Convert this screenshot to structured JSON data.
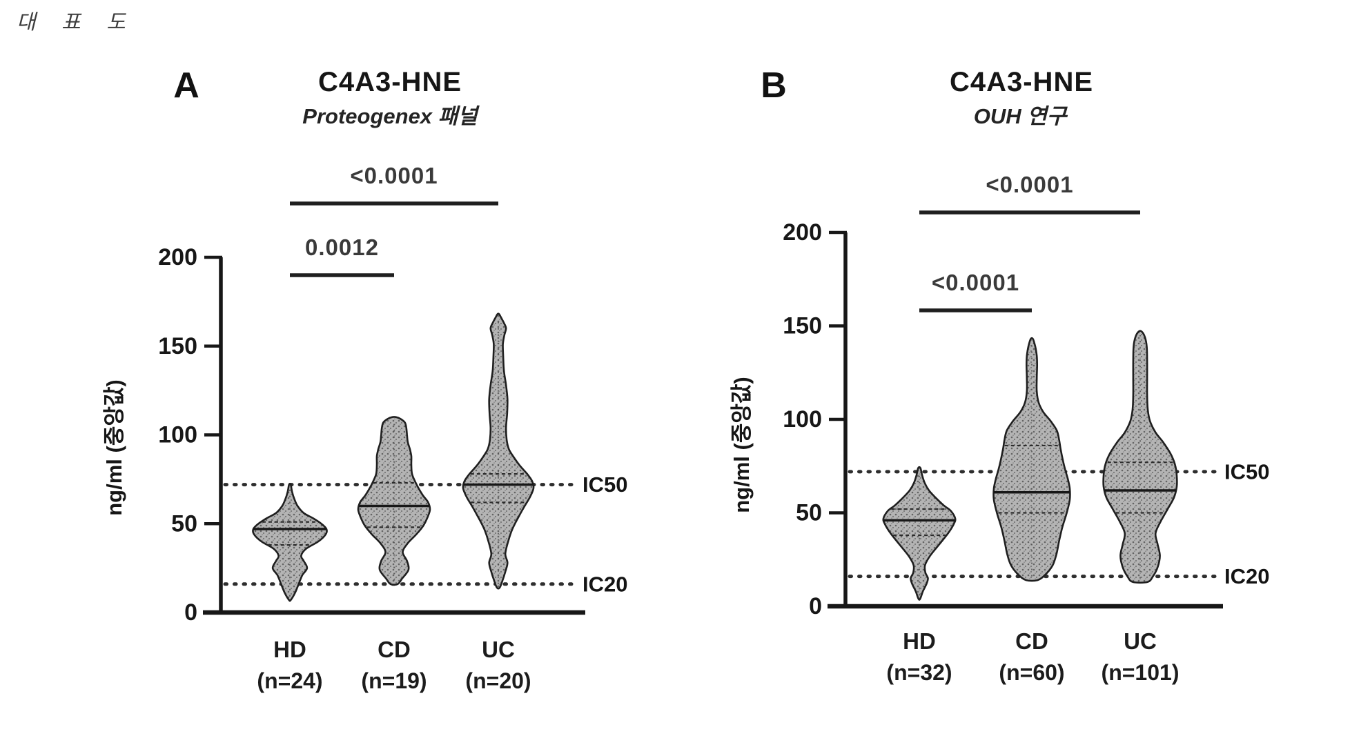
{
  "page": {
    "header": "대 표 도",
    "background": "#ffffff"
  },
  "colors": {
    "ink": "#161616",
    "axis": "#171717",
    "violin_fill": "#b4b4b4",
    "violin_stipple": "#646464",
    "violin_outline": "#1f1f1f",
    "threshold_line": "#2e2e2e",
    "sig_text": "#3a3a3a",
    "median_line": "#171717",
    "quartile_line": "#2b2b2b"
  },
  "chart_data": [
    {
      "type": "violin",
      "panel_letter": "A",
      "title": "C4A3-HNE",
      "subtitle": "Proteogenex 패널",
      "ylabel": "ng/ml (중앙값)",
      "ylim": [
        0,
        200
      ],
      "yticks": [
        200,
        150,
        100,
        50,
        0
      ],
      "grid": false,
      "categories": [
        "HD",
        "CD",
        "UC"
      ],
      "n_labels": [
        "(n=24)",
        "(n=19)",
        "(n=20)"
      ],
      "thresholds": [
        {
          "label": "IC50",
          "value": 72
        },
        {
          "label": "IC20",
          "value": 16
        }
      ],
      "significance": [
        {
          "label": "<0.0001",
          "from": "HD",
          "to": "UC"
        },
        {
          "label": "0.0012",
          "from": "HD",
          "to": "CD"
        }
      ],
      "groups": [
        {
          "name": "HD",
          "n": 24,
          "median": 47,
          "q1": 38,
          "q3": 51,
          "min": 7,
          "max": 72,
          "density": [
            [
              7,
              0.02
            ],
            [
              11,
              0.14
            ],
            [
              16,
              0.24
            ],
            [
              21,
              0.34
            ],
            [
              25,
              0.47
            ],
            [
              29,
              0.38
            ],
            [
              32,
              0.31
            ],
            [
              36,
              0.45
            ],
            [
              40,
              0.78
            ],
            [
              44,
              0.98
            ],
            [
              47,
              1.0
            ],
            [
              50,
              0.86
            ],
            [
              53,
              0.64
            ],
            [
              56,
              0.38
            ],
            [
              60,
              0.21
            ],
            [
              64,
              0.12
            ],
            [
              68,
              0.06
            ],
            [
              72,
              0.02
            ]
          ]
        },
        {
          "name": "CD",
          "n": 19,
          "median": 60,
          "q1": 48,
          "q3": 73,
          "min": 16,
          "max": 110,
          "density": [
            [
              16,
              0.1
            ],
            [
              19,
              0.22
            ],
            [
              24,
              0.4
            ],
            [
              29,
              0.36
            ],
            [
              34,
              0.24
            ],
            [
              39,
              0.38
            ],
            [
              44,
              0.62
            ],
            [
              49,
              0.82
            ],
            [
              54,
              0.94
            ],
            [
              58,
              1.0
            ],
            [
              62,
              0.95
            ],
            [
              66,
              0.8
            ],
            [
              70,
              0.68
            ],
            [
              74,
              0.58
            ],
            [
              78,
              0.5
            ],
            [
              83,
              0.48
            ],
            [
              88,
              0.48
            ],
            [
              92,
              0.44
            ],
            [
              96,
              0.38
            ],
            [
              100,
              0.36
            ],
            [
              104,
              0.34
            ],
            [
              107,
              0.3
            ],
            [
              109,
              0.18
            ],
            [
              110,
              0.06
            ]
          ]
        },
        {
          "name": "UC",
          "n": 20,
          "median": 72,
          "q1": 62,
          "q3": 78,
          "min": 14,
          "max": 168,
          "density": [
            [
              14,
              0.04
            ],
            [
              18,
              0.12
            ],
            [
              23,
              0.2
            ],
            [
              28,
              0.26
            ],
            [
              33,
              0.2
            ],
            [
              40,
              0.28
            ],
            [
              47,
              0.4
            ],
            [
              54,
              0.58
            ],
            [
              60,
              0.75
            ],
            [
              65,
              0.9
            ],
            [
              70,
              1.0
            ],
            [
              74,
              0.96
            ],
            [
              78,
              0.82
            ],
            [
              83,
              0.6
            ],
            [
              88,
              0.42
            ],
            [
              92,
              0.3
            ],
            [
              97,
              0.24
            ],
            [
              104,
              0.22
            ],
            [
              112,
              0.25
            ],
            [
              120,
              0.26
            ],
            [
              128,
              0.22
            ],
            [
              136,
              0.16
            ],
            [
              144,
              0.14
            ],
            [
              151,
              0.13
            ],
            [
              156,
              0.17
            ],
            [
              160,
              0.22
            ],
            [
              163,
              0.16
            ],
            [
              166,
              0.08
            ],
            [
              168,
              0.02
            ]
          ]
        }
      ]
    },
    {
      "type": "violin",
      "panel_letter": "B",
      "title": "C4A3-HNE",
      "subtitle": "OUH 연구",
      "ylabel": "ng/ml (중앙값)",
      "ylim": [
        0,
        200
      ],
      "yticks": [
        200,
        150,
        100,
        50,
        0
      ],
      "grid": false,
      "categories": [
        "HD",
        "CD",
        "UC"
      ],
      "n_labels": [
        "(n=32)",
        "(n=60)",
        "(n=101)"
      ],
      "thresholds": [
        {
          "label": "IC50",
          "value": 72
        },
        {
          "label": "IC20",
          "value": 16
        }
      ],
      "significance": [
        {
          "label": "<0.0001",
          "from": "HD",
          "to": "UC"
        },
        {
          "label": "<0.0001",
          "from": "HD",
          "to": "CD"
        }
      ],
      "groups": [
        {
          "name": "HD",
          "n": 32,
          "median": 46,
          "q1": 38,
          "q3": 52,
          "min": 4,
          "max": 74,
          "density": [
            [
              4,
              0.02
            ],
            [
              8,
              0.1
            ],
            [
              12,
              0.2
            ],
            [
              15,
              0.24
            ],
            [
              18,
              0.17
            ],
            [
              22,
              0.16
            ],
            [
              27,
              0.3
            ],
            [
              33,
              0.55
            ],
            [
              39,
              0.8
            ],
            [
              44,
              0.96
            ],
            [
              47,
              1.0
            ],
            [
              51,
              0.88
            ],
            [
              54,
              0.68
            ],
            [
              58,
              0.46
            ],
            [
              62,
              0.27
            ],
            [
              66,
              0.15
            ],
            [
              70,
              0.08
            ],
            [
              74,
              0.03
            ]
          ]
        },
        {
          "name": "CD",
          "n": 60,
          "median": 61,
          "q1": 50,
          "q3": 86,
          "min": 14,
          "max": 143,
          "density": [
            [
              14,
              0.15
            ],
            [
              17,
              0.36
            ],
            [
              22,
              0.55
            ],
            [
              28,
              0.65
            ],
            [
              35,
              0.72
            ],
            [
              42,
              0.8
            ],
            [
              50,
              0.92
            ],
            [
              57,
              1.0
            ],
            [
              63,
              1.0
            ],
            [
              68,
              0.95
            ],
            [
              73,
              0.88
            ],
            [
              78,
              0.82
            ],
            [
              84,
              0.76
            ],
            [
              89,
              0.72
            ],
            [
              94,
              0.66
            ],
            [
              99,
              0.5
            ],
            [
              104,
              0.3
            ],
            [
              109,
              0.18
            ],
            [
              115,
              0.13
            ],
            [
              122,
              0.13
            ],
            [
              129,
              0.14
            ],
            [
              134,
              0.13
            ],
            [
              139,
              0.09
            ],
            [
              143,
              0.03
            ]
          ]
        },
        {
          "name": "UC",
          "n": 101,
          "median": 62,
          "q1": 50,
          "q3": 77,
          "min": 13,
          "max": 147,
          "density": [
            [
              13,
              0.2
            ],
            [
              16,
              0.35
            ],
            [
              21,
              0.48
            ],
            [
              27,
              0.54
            ],
            [
              33,
              0.48
            ],
            [
              39,
              0.42
            ],
            [
              45,
              0.55
            ],
            [
              52,
              0.75
            ],
            [
              58,
              0.92
            ],
            [
              64,
              1.0
            ],
            [
              70,
              1.0
            ],
            [
              76,
              0.95
            ],
            [
              82,
              0.82
            ],
            [
              88,
              0.62
            ],
            [
              93,
              0.42
            ],
            [
              99,
              0.27
            ],
            [
              105,
              0.21
            ],
            [
              113,
              0.19
            ],
            [
              122,
              0.19
            ],
            [
              131,
              0.19
            ],
            [
              139,
              0.18
            ],
            [
              144,
              0.13
            ],
            [
              147,
              0.04
            ]
          ]
        }
      ]
    }
  ]
}
